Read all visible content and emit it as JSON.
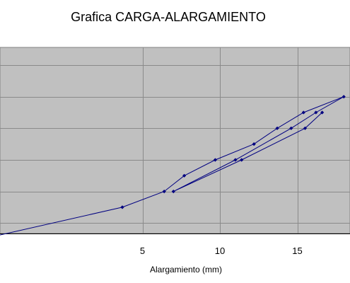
{
  "chart_data": {
    "type": "line",
    "title": "Grafica CARGA-ALARGAMIENTO",
    "xlabel": "Alargamiento (mm)",
    "ylabel": "",
    "xlim": [
      -4.2,
      18.4
    ],
    "ylim": [
      -0.33,
      5.56
    ],
    "x_ticks": [
      5,
      10,
      15
    ],
    "x_tick_labels": [
      "5",
      "10",
      "15"
    ],
    "y_gridlines": [
      0,
      1,
      2,
      3,
      4,
      5
    ],
    "grid": true,
    "legend": "none",
    "colors": {
      "line": "#000080",
      "plot_background": "#c0c0c0",
      "gridline": "#8a8a8a",
      "page_background": "#ffffff"
    },
    "series": [
      {
        "x": [
          -4.4,
          3.7,
          6.4,
          7.7,
          9.7,
          12.2,
          13.7,
          15.4,
          18.0,
          16.2,
          14.6,
          11.0,
          7.0,
          11.4,
          15.5,
          16.6
        ],
        "y": [
          -0.4,
          0.5,
          1.0,
          1.5,
          2.0,
          2.5,
          3.0,
          3.5,
          4.0,
          3.5,
          3.0,
          2.0,
          1.0,
          2.0,
          3.0,
          3.5
        ]
      }
    ]
  }
}
